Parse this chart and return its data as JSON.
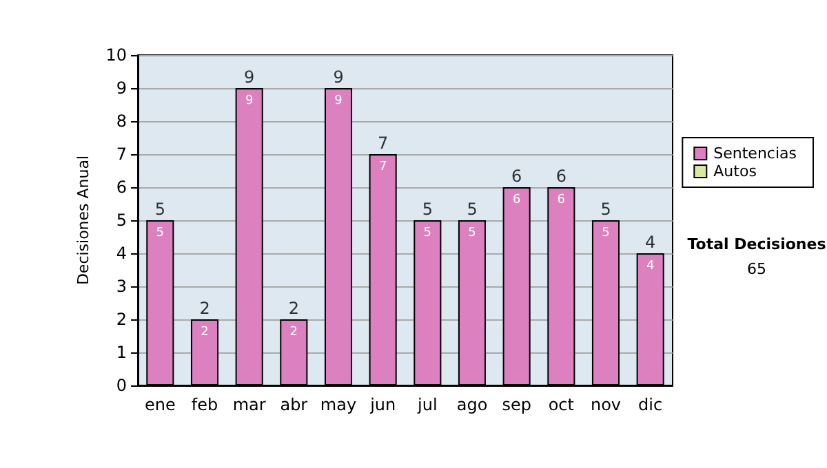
{
  "chart_data": {
    "type": "bar",
    "stacked": true,
    "ylabel": "Decisiones Anual",
    "categories": [
      "ene",
      "feb",
      "mar",
      "abr",
      "may",
      "jun",
      "jul",
      "ago",
      "sep",
      "oct",
      "nov",
      "dic"
    ],
    "series": [
      {
        "name": "Sentencias",
        "color": "#dd80c0",
        "values": [
          5,
          2,
          9,
          2,
          9,
          7,
          5,
          5,
          6,
          6,
          5,
          4
        ]
      },
      {
        "name": "Autos",
        "color": "#d8e8a0",
        "values": [
          null,
          null,
          null,
          null,
          null,
          null,
          null,
          null,
          null,
          null,
          null,
          null
        ]
      }
    ],
    "totals": [
      "5",
      "2",
      "9",
      "2",
      "9",
      "7",
      "5",
      "5",
      "6",
      "6",
      "5",
      "4"
    ],
    "data_labels": true,
    "ylim": [
      0,
      10
    ],
    "yticks": [
      0,
      1,
      2,
      3,
      4,
      5,
      6,
      7,
      8,
      9,
      10
    ],
    "grid": "y",
    "legend": "right",
    "annotations": [
      "Total Decisiones",
      "65"
    ]
  }
}
